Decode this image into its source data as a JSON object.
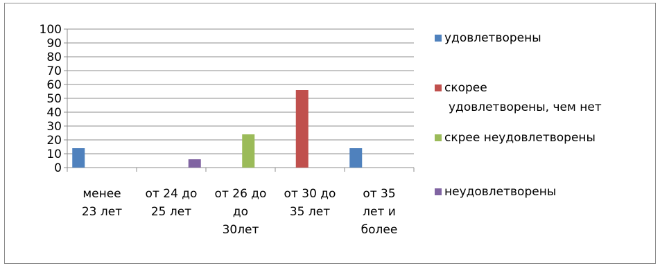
{
  "chart_data": {
    "type": "bar",
    "categories": [
      "менее 23 лет",
      "от 24 до 25 лет",
      "от 26 до до 30лет",
      "от 30 до 35 лет",
      "от 35 лет и более"
    ],
    "category_lines": [
      [
        "менее",
        "23 лет"
      ],
      [
        "от 24 до",
        "25 лет"
      ],
      [
        "от 26 до",
        "до",
        "30лет"
      ],
      [
        "от 30 до",
        "35 лет"
      ],
      [
        "от 35",
        "лет и",
        "более"
      ]
    ],
    "series": [
      {
        "name": "удовлетворены",
        "color": "#4f81bd",
        "values": [
          14,
          0,
          0,
          0,
          14
        ]
      },
      {
        "name": "скорее удовлетворены, чем нет",
        "color": "#c0504d",
        "values": [
          0,
          0,
          0,
          56,
          0
        ]
      },
      {
        "name": "скрее неудовлетворены",
        "color": "#9bbb59",
        "values": [
          0,
          0,
          24,
          0,
          0
        ]
      },
      {
        "name": "неудовлетворены",
        "color": "#8064a2",
        "values": [
          0,
          6,
          0,
          0,
          0
        ]
      }
    ],
    "legend_lines": [
      [
        "удовлетворены"
      ],
      [
        "скорее",
        "удовлетворены, чем нет"
      ],
      [
        "скрее неудовлетворены"
      ],
      [
        "неудовлетворены"
      ]
    ],
    "ylim": [
      0,
      100
    ],
    "yticks": [
      "0",
      "10",
      "20",
      "30",
      "40",
      "50",
      "60",
      "70",
      "80",
      "90",
      "100"
    ],
    "grid": true,
    "legend_position": "right",
    "title": "",
    "xlabel": "",
    "ylabel": ""
  }
}
